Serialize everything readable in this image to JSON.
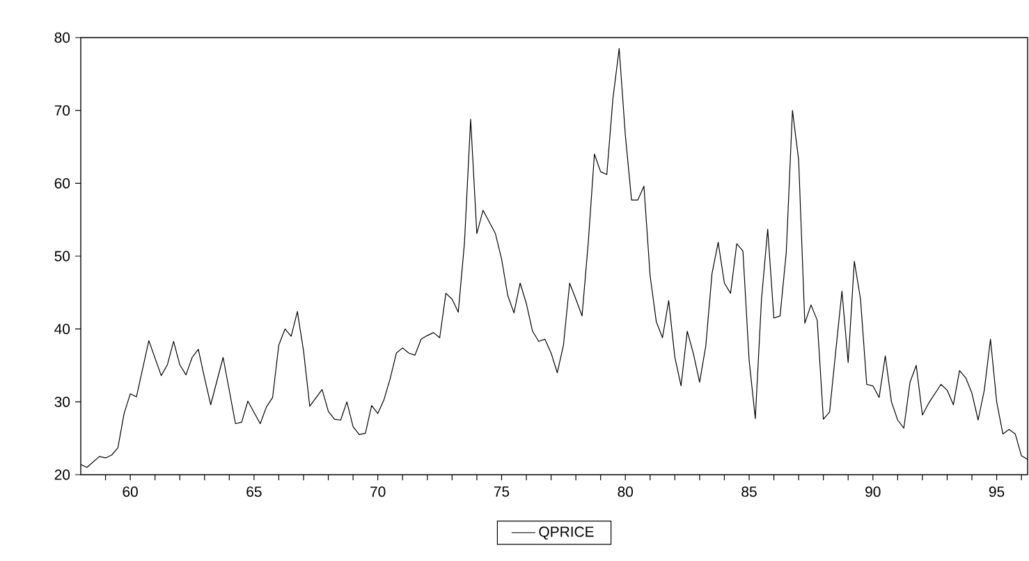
{
  "chart_data": {
    "type": "line",
    "xlim": [
      58,
      96.25
    ],
    "ylim": [
      20,
      80
    ],
    "xticks": [
      {
        "value": 59,
        "label": null
      },
      60,
      {
        "value": 61,
        "label": null
      },
      {
        "value": 62,
        "label": null
      },
      {
        "value": 63,
        "label": null
      },
      {
        "value": 64,
        "label": null
      },
      65,
      {
        "value": 66,
        "label": null
      },
      {
        "value": 67,
        "label": null
      },
      {
        "value": 68,
        "label": null
      },
      {
        "value": 69,
        "label": null
      },
      70,
      {
        "value": 71,
        "label": null
      },
      {
        "value": 72,
        "label": null
      },
      {
        "value": 73,
        "label": null
      },
      {
        "value": 74,
        "label": null
      },
      75,
      {
        "value": 76,
        "label": null
      },
      {
        "value": 77,
        "label": null
      },
      {
        "value": 78,
        "label": null
      },
      {
        "value": 79,
        "label": null
      },
      80,
      {
        "value": 81,
        "label": null
      },
      {
        "value": 82,
        "label": null
      },
      {
        "value": 83,
        "label": null
      },
      {
        "value": 84,
        "label": null
      },
      85,
      {
        "value": 86,
        "label": null
      },
      {
        "value": 87,
        "label": null
      },
      {
        "value": 88,
        "label": null
      },
      {
        "value": 89,
        "label": null
      },
      90,
      {
        "value": 91,
        "label": null
      },
      {
        "value": 92,
        "label": null
      },
      {
        "value": 93,
        "label": null
      },
      {
        "value": 94,
        "label": null
      },
      95,
      {
        "value": 96,
        "label": null
      }
    ],
    "yticks": [
      20,
      30,
      40,
      50,
      60,
      70,
      80
    ],
    "grid": false,
    "legend": "bottom",
    "marker": "none",
    "line_style": "solid",
    "series": [
      {
        "name": "QPRICE",
        "color": "#000000",
        "x": [
          58.0,
          58.25,
          58.75,
          59.0,
          59.25,
          59.5,
          59.75,
          60.0,
          60.25,
          60.75,
          61.25,
          61.5,
          61.75,
          62.0,
          62.25,
          62.5,
          62.75,
          63.0,
          63.25,
          63.75,
          64.25,
          64.5,
          64.75,
          65.25,
          65.5,
          65.75,
          66.0,
          66.25,
          66.5,
          66.75,
          67.0,
          67.25,
          67.75,
          68.0,
          68.25,
          68.5,
          68.75,
          69.0,
          69.25,
          69.5,
          69.75,
          70.0,
          70.25,
          70.5,
          70.75,
          71.0,
          71.25,
          71.5,
          71.75,
          72.0,
          72.25,
          72.5,
          72.75,
          73.0,
          73.25,
          73.5,
          73.75,
          74.0,
          74.25,
          74.5,
          74.75,
          75.0,
          75.25,
          75.5,
          75.75,
          76.0,
          76.25,
          76.5,
          76.75,
          77.0,
          77.25,
          77.5,
          77.75,
          78.0,
          78.25,
          78.5,
          78.75,
          79.0,
          79.25,
          79.5,
          79.75,
          80.0,
          80.25,
          80.5,
          80.75,
          81.0,
          81.25,
          81.5,
          81.75,
          82.0,
          82.25,
          82.5,
          82.75,
          83.0,
          83.25,
          83.5,
          83.75,
          84.0,
          84.25,
          84.5,
          84.75,
          85.0,
          85.25,
          85.5,
          85.75,
          86.0,
          86.25,
          86.5,
          86.75,
          87.0,
          87.25,
          87.5,
          87.75,
          88.0,
          88.25,
          88.5,
          88.75,
          89.0,
          89.25,
          89.5,
          89.75,
          90.0,
          90.25,
          90.5,
          90.75,
          91.0,
          91.25,
          91.5,
          91.75,
          92.0,
          92.25,
          92.5,
          92.75,
          93.0,
          93.25,
          93.5,
          93.75,
          94.0,
          94.25,
          94.5,
          94.75,
          95.0,
          95.25,
          95.5,
          95.75,
          96.0,
          96.25
        ],
        "values": [
          21.4,
          21.0,
          22.5,
          22.3,
          22.7,
          23.7,
          28.4,
          31.1,
          30.7,
          38.4,
          33.6,
          35.1,
          38.3,
          35.1,
          33.7,
          36.1,
          37.2,
          33.3,
          29.6,
          36.1,
          27.0,
          27.2,
          30.1,
          27.0,
          29.3,
          30.6,
          37.8,
          40.0,
          39.0,
          42.4,
          37.0,
          29.4,
          31.7,
          28.7,
          27.6,
          27.5,
          30.0,
          26.6,
          25.5,
          25.7,
          29.5,
          28.4,
          30.3,
          33.2,
          36.7,
          37.4,
          36.7,
          36.4,
          38.6,
          39.1,
          39.5,
          38.8,
          44.9,
          44.1,
          42.3,
          51.8,
          68.8,
          53.1,
          56.3,
          54.7,
          53.1,
          49.6,
          44.6,
          42.2,
          46.3,
          43.5,
          39.7,
          38.3,
          38.6,
          36.7,
          34.0,
          37.8,
          46.3,
          44.1,
          41.8,
          51.8,
          64.0,
          61.6,
          61.2,
          71.7,
          78.5,
          66.6,
          57.7,
          57.7,
          59.6,
          47.3,
          41.0,
          38.8,
          43.9,
          36.1,
          32.2,
          39.7,
          36.6,
          32.7,
          37.7,
          47.6,
          51.9,
          46.3,
          44.9,
          51.7,
          50.7,
          35.7,
          27.7,
          44.1,
          53.7,
          41.5,
          41.8,
          50.5,
          70.0,
          63.2,
          40.8,
          43.3,
          41.2,
          27.6,
          28.6,
          37.0,
          45.2,
          35.4,
          49.3,
          44.1,
          32.4,
          32.2,
          30.6,
          36.3,
          30.0,
          27.5,
          26.4,
          32.7,
          35.0,
          28.2,
          29.8,
          31.1,
          32.4,
          31.6,
          29.6,
          34.3,
          33.3,
          31.2,
          27.5,
          31.6,
          38.6,
          30.0,
          25.6,
          26.2,
          25.6,
          22.6,
          22.1
        ]
      }
    ]
  }
}
